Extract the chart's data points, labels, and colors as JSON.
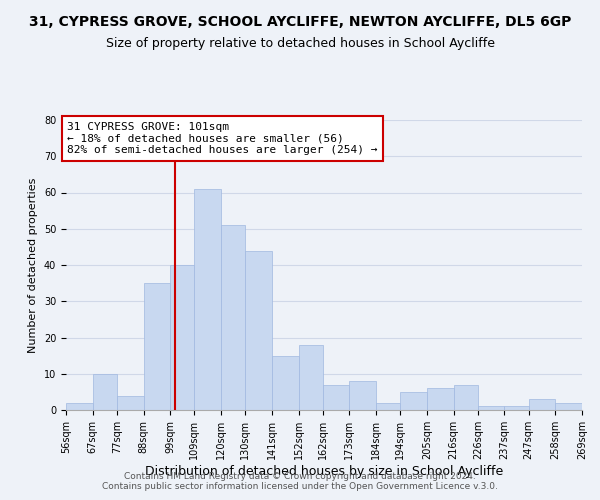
{
  "title": "31, CYPRESS GROVE, SCHOOL AYCLIFFE, NEWTON AYCLIFFE, DL5 6GP",
  "subtitle": "Size of property relative to detached houses in School Aycliffe",
  "xlabel": "Distribution of detached houses by size in School Aycliffe",
  "ylabel": "Number of detached properties",
  "bin_edges": [
    56,
    67,
    77,
    88,
    99,
    109,
    120,
    130,
    141,
    152,
    162,
    173,
    184,
    194,
    205,
    216,
    226,
    237,
    247,
    258,
    269
  ],
  "bin_labels": [
    "56sqm",
    "67sqm",
    "77sqm",
    "88sqm",
    "99sqm",
    "109sqm",
    "120sqm",
    "130sqm",
    "141sqm",
    "152sqm",
    "162sqm",
    "173sqm",
    "184sqm",
    "194sqm",
    "205sqm",
    "216sqm",
    "226sqm",
    "237sqm",
    "247sqm",
    "258sqm",
    "269sqm"
  ],
  "bar_heights": [
    2,
    10,
    4,
    35,
    40,
    61,
    51,
    44,
    15,
    18,
    7,
    8,
    2,
    5,
    6,
    7,
    1,
    1,
    3,
    2
  ],
  "bar_color": "#c8d8f0",
  "bar_edgecolor": "#a0b8e0",
  "vline_x": 101,
  "vline_color": "#cc0000",
  "annotation_line1": "31 CYPRESS GROVE: 101sqm",
  "annotation_line2": "← 18% of detached houses are smaller (56)",
  "annotation_line3": "82% of semi-detached houses are larger (254) →",
  "annotation_box_color": "#ffffff",
  "annotation_box_edgecolor": "#cc0000",
  "ylim": [
    0,
    80
  ],
  "yticks": [
    0,
    10,
    20,
    30,
    40,
    50,
    60,
    70,
    80
  ],
  "grid_color": "#d0d8e8",
  "background_color": "#eef2f8",
  "footer1": "Contains HM Land Registry data © Crown copyright and database right 2024.",
  "footer2": "Contains public sector information licensed under the Open Government Licence v.3.0.",
  "title_fontsize": 10,
  "subtitle_fontsize": 9,
  "xlabel_fontsize": 9,
  "ylabel_fontsize": 8,
  "tick_fontsize": 7,
  "annotation_fontsize": 8,
  "footer_fontsize": 6.5
}
